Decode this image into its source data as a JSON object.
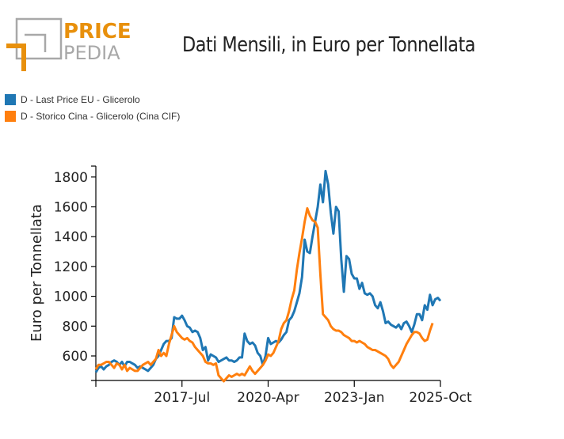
{
  "brand": {
    "top": "PRICE",
    "bottom": "PEDIA",
    "accent": "#e8900c",
    "grey": "#a8a8a8"
  },
  "chart_data": {
    "type": "line",
    "title": "Dati Mensili, in Euro per Tonnellata",
    "xlabel": "",
    "ylabel": "Euro per Tonnellata",
    "x_start": "2014-Oct",
    "x_end": "2025-Oct",
    "x_ticks": [
      "",
      "2017-Jul",
      "2020-Apr",
      "2023-Jan",
      "2025-Oct"
    ],
    "y_ticks": [
      600,
      800,
      1000,
      1200,
      1400,
      1600,
      1800
    ],
    "ylim": [
      430,
      1870
    ],
    "grid": false,
    "legend_position": "top-left",
    "series": [
      {
        "name": "D - Last Price EU - Glicerolo",
        "color": "#1f77b4",
        "values": [
          490,
          520,
          530,
          510,
          530,
          540,
          560,
          570,
          560,
          540,
          560,
          530,
          560,
          560,
          550,
          540,
          520,
          530,
          520,
          510,
          500,
          520,
          540,
          580,
          600,
          640,
          680,
          700,
          700,
          720,
          860,
          850,
          850,
          870,
          840,
          800,
          790,
          760,
          770,
          760,
          720,
          640,
          660,
          570,
          610,
          600,
          590,
          560,
          570,
          580,
          590,
          570,
          570,
          560,
          570,
          590,
          590,
          750,
          700,
          680,
          690,
          670,
          620,
          600,
          540,
          600,
          720,
          680,
          690,
          700,
          690,
          710,
          740,
          760,
          840,
          860,
          900,
          960,
          1020,
          1130,
          1380,
          1300,
          1290,
          1400,
          1500,
          1600,
          1750,
          1630,
          1840,
          1750,
          1560,
          1420,
          1600,
          1570,
          1250,
          1030,
          1270,
          1250,
          1150,
          1120,
          1120,
          1050,
          1090,
          1020,
          1010,
          1020,
          1000,
          940,
          920,
          960,
          900,
          820,
          830,
          810,
          800,
          790,
          810,
          780,
          820,
          830,
          800,
          760,
          810,
          880,
          880,
          840,
          940,
          910,
          1010,
          940,
          980,
          990,
          970
        ]
      },
      {
        "name": "D - Storico Cina - Glicerolo (Cina CIF)",
        "color": "#ff7f0e",
        "values": [
          510,
          540,
          540,
          550,
          560,
          560,
          540,
          520,
          550,
          540,
          510,
          540,
          500,
          520,
          510,
          500,
          500,
          520,
          540,
          550,
          560,
          540,
          560,
          580,
          640,
          600,
          620,
          600,
          680,
          740,
          800,
          760,
          740,
          720,
          710,
          720,
          700,
          690,
          660,
          640,
          620,
          600,
          560,
          550,
          550,
          540,
          550,
          470,
          450,
          430,
          450,
          470,
          460,
          470,
          480,
          470,
          480,
          470,
          500,
          530,
          500,
          480,
          500,
          520,
          540,
          570,
          610,
          600,
          620,
          660,
          700,
          780,
          820,
          840,
          900,
          980,
          1040,
          1180,
          1290,
          1390,
          1500,
          1590,
          1540,
          1510,
          1500,
          1460,
          1150,
          880,
          860,
          840,
          800,
          780,
          770,
          770,
          760,
          740,
          730,
          720,
          700,
          700,
          690,
          700,
          690,
          680,
          660,
          650,
          640,
          640,
          630,
          620,
          610,
          600,
          580,
          540,
          520,
          540,
          560,
          600,
          640,
          680,
          710,
          740,
          760,
          760,
          750,
          720,
          700,
          710,
          770,
          820
        ]
      }
    ]
  }
}
